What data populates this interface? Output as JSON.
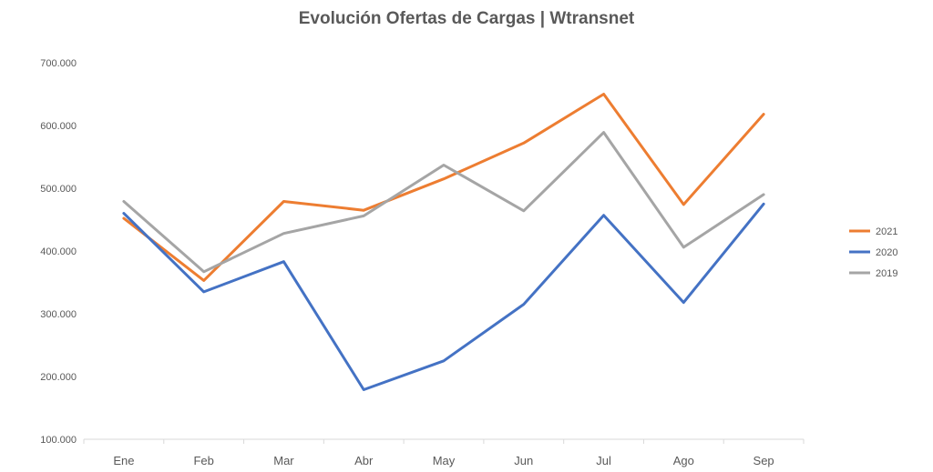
{
  "chart_data": {
    "type": "line",
    "title": "Evolución Ofertas de Cargas | Wtransnet",
    "xlabel": "",
    "ylabel": "",
    "categories": [
      "Ene",
      "Feb",
      "Mar",
      "Abr",
      "May",
      "Jun",
      "Jul",
      "Ago",
      "Sep"
    ],
    "ylim": [
      100000,
      700000
    ],
    "y_ticks": [
      100000,
      200000,
      300000,
      400000,
      500000,
      600000,
      700000
    ],
    "y_tick_labels": [
      "100.000",
      "200.000",
      "300.000",
      "400.000",
      "500.000",
      "600.000",
      "700.000"
    ],
    "grid": false,
    "legend_position": "right",
    "series": [
      {
        "name": "2021",
        "color": "#ED7D31",
        "values": [
          452000,
          353000,
          479000,
          465000,
          515000,
          572000,
          650000,
          474000,
          618000
        ]
      },
      {
        "name": "2020",
        "color": "#4472C4",
        "values": [
          460000,
          335000,
          383000,
          179000,
          225000,
          315000,
          457000,
          318000,
          475000
        ]
      },
      {
        "name": "2019",
        "color": "#A5A5A5",
        "values": [
          479000,
          367000,
          428000,
          456000,
          537000,
          464000,
          589000,
          406000,
          490000
        ]
      }
    ]
  }
}
